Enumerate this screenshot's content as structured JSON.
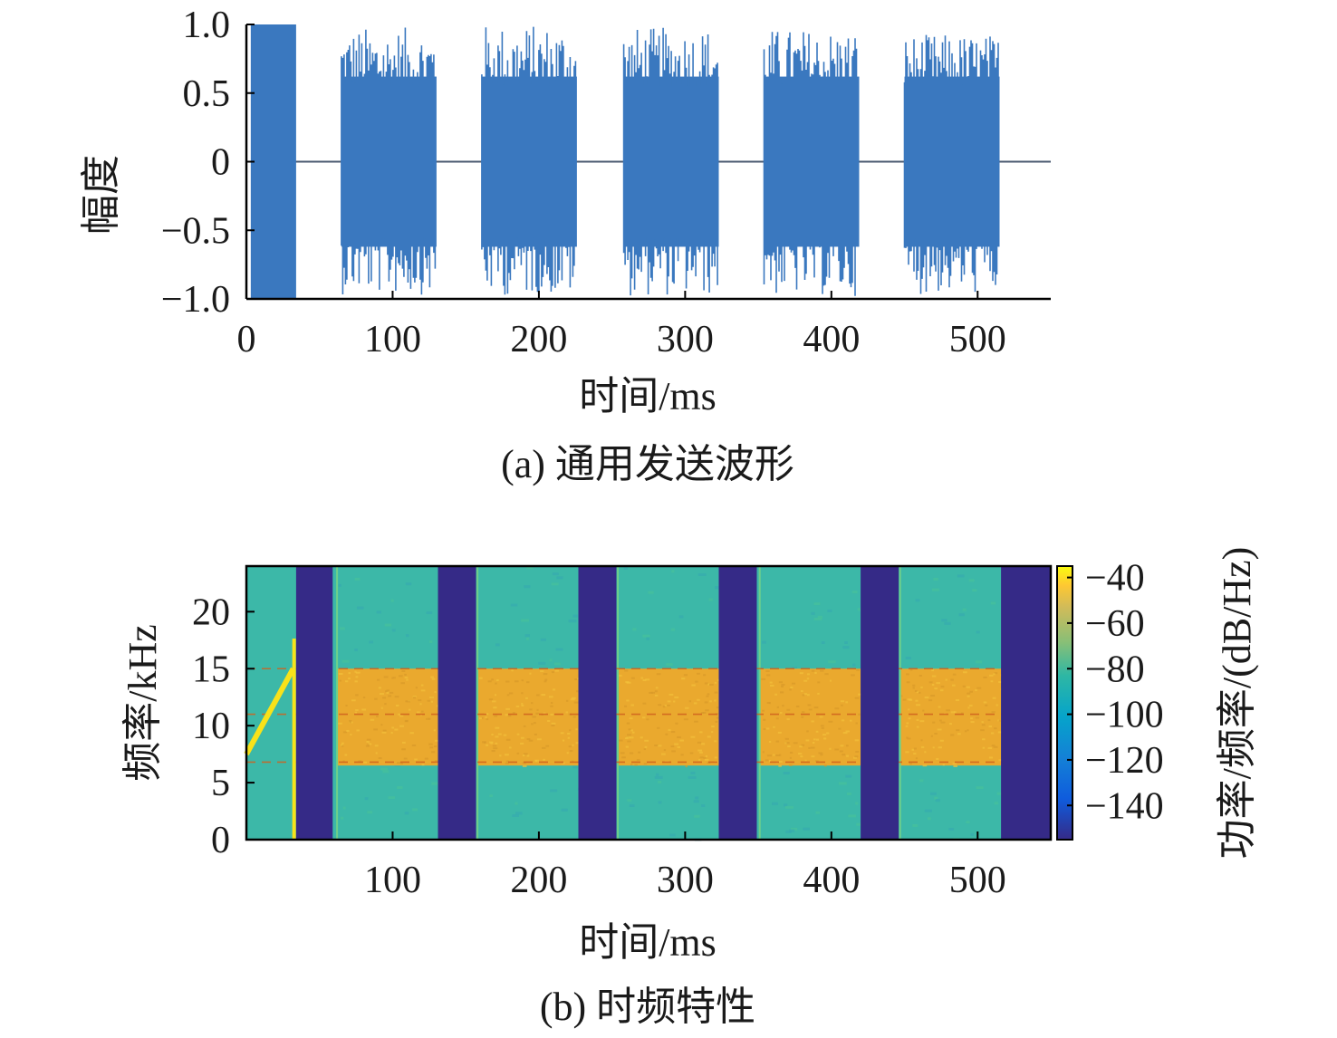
{
  "colors": {
    "waveform": "#3a78bf",
    "zero_line": "#4a5a70",
    "gap_band": "#352a87",
    "noise_band": "#3cb8a8",
    "signal_band": "#eaa92e",
    "chirp": "#f8e21a",
    "axis": "#000000"
  },
  "chart_data": [
    {
      "type": "line",
      "panel_caption": "(a) 通用发送波形",
      "xlabel": "时间/ms",
      "ylabel": "幅度",
      "xlim": [
        0,
        550
      ],
      "ylim": [
        -1.0,
        1.0
      ],
      "x_ticks": [
        0,
        100,
        200,
        300,
        400,
        500
      ],
      "x_tick_labels": [
        "0",
        "100",
        "200",
        "300",
        "400",
        "500"
      ],
      "y_ticks": [
        1.0,
        0.5,
        0,
        -0.5,
        -1.0
      ],
      "y_tick_labels": [
        "1.0",
        "0.5",
        "0",
        "−0.5",
        "−1.0"
      ],
      "series": [
        {
          "segments": [
            {
              "start_ms": 3,
              "end_ms": 34,
              "amplitude_min": -1.0,
              "amplitude_max": 1.0,
              "kind": "chirp"
            },
            {
              "start_ms": 65,
              "end_ms": 130,
              "amplitude_min": -0.97,
              "amplitude_max": 0.98,
              "kind": "noise"
            },
            {
              "start_ms": 161,
              "end_ms": 226,
              "amplitude_min": -0.98,
              "amplitude_max": 1.0,
              "kind": "noise"
            },
            {
              "start_ms": 258,
              "end_ms": 323,
              "amplitude_min": -0.98,
              "amplitude_max": 0.98,
              "kind": "noise"
            },
            {
              "start_ms": 354,
              "end_ms": 419,
              "amplitude_min": -0.98,
              "amplitude_max": 0.97,
              "kind": "noise"
            },
            {
              "start_ms": 450,
              "end_ms": 515,
              "amplitude_min": -0.97,
              "amplitude_max": 0.93,
              "kind": "noise"
            }
          ]
        }
      ]
    },
    {
      "type": "heatmap",
      "panel_caption": "(b) 时频特性",
      "xlabel": "时间/ms",
      "ylabel": "频率/kHz",
      "colorbar_label": "功率/频率/(dB/Hz)",
      "xlim": [
        0,
        550
      ],
      "ylim": [
        0,
        24
      ],
      "x_ticks": [
        100,
        200,
        300,
        400,
        500
      ],
      "x_tick_labels": [
        "100",
        "200",
        "300",
        "400",
        "500"
      ],
      "y_ticks": [
        0,
        5,
        10,
        15,
        20
      ],
      "y_tick_labels": [
        "0",
        "5",
        "10",
        "15",
        "20"
      ],
      "colorbar_ticks": [
        -40,
        -60,
        -80,
        -100,
        -120,
        -140
      ],
      "colorbar_tick_labels": [
        "−40",
        "−60",
        "−80",
        "−100",
        "−120",
        "−140"
      ],
      "colorbar_range": [
        -155,
        -35
      ],
      "chirp": {
        "start_ms": 0,
        "end_ms": 32,
        "start_khz": 7.5,
        "end_khz": 15
      },
      "bursts": [
        {
          "start_ms": 62,
          "end_ms": 131,
          "band_low_khz": 6.5,
          "band_high_khz": 15
        },
        {
          "start_ms": 158,
          "end_ms": 227,
          "band_low_khz": 6.5,
          "band_high_khz": 15
        },
        {
          "start_ms": 254,
          "end_ms": 323,
          "band_low_khz": 6.5,
          "band_high_khz": 15
        },
        {
          "start_ms": 351,
          "end_ms": 420,
          "band_low_khz": 6.5,
          "band_high_khz": 15
        },
        {
          "start_ms": 447,
          "end_ms": 516,
          "band_low_khz": 6.5,
          "band_high_khz": 15
        }
      ],
      "gaps": [
        {
          "start_ms": 34,
          "end_ms": 59
        },
        {
          "start_ms": 131,
          "end_ms": 157
        },
        {
          "start_ms": 227,
          "end_ms": 253
        },
        {
          "start_ms": 323,
          "end_ms": 349
        },
        {
          "start_ms": 420,
          "end_ms": 446
        },
        {
          "start_ms": 516,
          "end_ms": 550
        }
      ],
      "dashed_lines_khz": [
        6.8,
        11,
        15
      ]
    }
  ]
}
